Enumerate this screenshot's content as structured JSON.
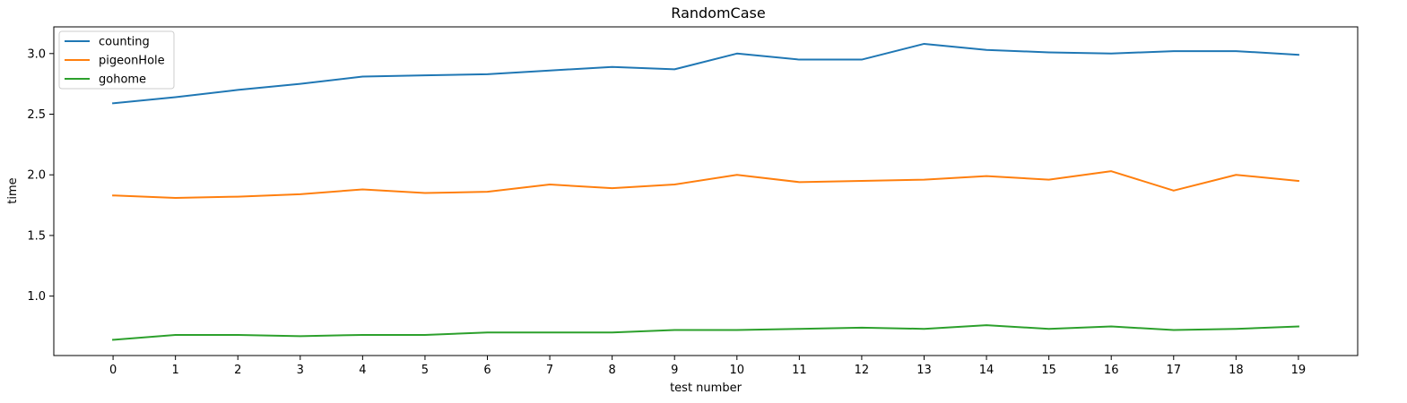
{
  "chart_data": {
    "type": "line",
    "title": "RandomCase",
    "xlabel": "test number",
    "ylabel": "time",
    "x": [
      0,
      1,
      2,
      3,
      4,
      5,
      6,
      7,
      8,
      9,
      10,
      11,
      12,
      13,
      14,
      15,
      16,
      17,
      18,
      19
    ],
    "x_ticks": [
      "0",
      "1",
      "2",
      "3",
      "4",
      "5",
      "6",
      "7",
      "8",
      "9",
      "10",
      "11",
      "12",
      "13",
      "14",
      "15",
      "16",
      "17",
      "18",
      "19"
    ],
    "xlim": [
      -0.95,
      19.95
    ],
    "y_ticks": [
      "1.0",
      "1.5",
      "2.0",
      "2.5",
      "3.0"
    ],
    "y_tick_values": [
      1.0,
      1.5,
      2.0,
      2.5,
      3.0
    ],
    "ylim": [
      0.51,
      3.22
    ],
    "grid": false,
    "legend_position": "top-left",
    "series": [
      {
        "name": "counting",
        "color": "#1f77b4",
        "values": [
          2.59,
          2.64,
          2.7,
          2.75,
          2.81,
          2.82,
          2.83,
          2.86,
          2.89,
          2.87,
          3.0,
          2.95,
          2.95,
          3.08,
          3.03,
          3.01,
          3.0,
          3.02,
          3.02,
          2.99
        ]
      },
      {
        "name": "pigeonHole",
        "color": "#ff7f0e",
        "values": [
          1.83,
          1.81,
          1.82,
          1.84,
          1.88,
          1.85,
          1.86,
          1.92,
          1.89,
          1.92,
          2.0,
          1.94,
          1.95,
          1.96,
          1.99,
          1.96,
          2.03,
          1.87,
          2.0,
          1.95
        ]
      },
      {
        "name": "gohome",
        "color": "#2ca02c",
        "values": [
          0.64,
          0.68,
          0.68,
          0.67,
          0.68,
          0.68,
          0.7,
          0.7,
          0.7,
          0.72,
          0.72,
          0.73,
          0.74,
          0.73,
          0.76,
          0.73,
          0.75,
          0.72,
          0.73,
          0.75
        ]
      }
    ]
  }
}
